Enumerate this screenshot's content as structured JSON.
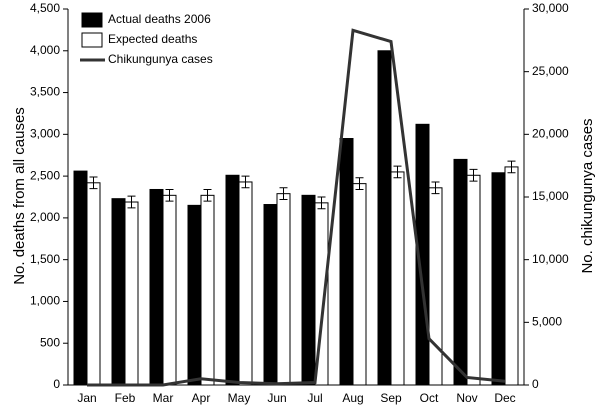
{
  "chart_data": {
    "type": "bar-line",
    "categories": [
      "Jan",
      "Feb",
      "Mar",
      "Apr",
      "May",
      "Jun",
      "Jul",
      "Aug",
      "Sep",
      "Oct",
      "Nov",
      "Dec"
    ],
    "y_label": "No. deaths from all causes",
    "y2_label": "No. chikungunya cases",
    "ylim": [
      0,
      4500
    ],
    "yticks": [
      0,
      500,
      {
        "value": 1000,
        "label": "1,000"
      },
      {
        "value": 1500,
        "label": "1,500"
      },
      {
        "value": 2000,
        "label": "2,000"
      },
      {
        "value": 2500,
        "label": "2,500"
      },
      {
        "value": 3000,
        "label": "3,000"
      },
      {
        "value": 3500,
        "label": "3,500"
      },
      {
        "value": 4000,
        "label": "4,000"
      },
      {
        "value": 4500,
        "label": "4,500"
      }
    ],
    "y2lim": [
      0,
      30000
    ],
    "y2ticks": [
      0,
      {
        "value": 5000,
        "label": "5,000"
      },
      {
        "value": 10000,
        "label": "10,000"
      },
      {
        "value": 15000,
        "label": "15,000"
      },
      {
        "value": 20000,
        "label": "20,000"
      },
      {
        "value": 25000,
        "label": "25,000"
      },
      {
        "value": 30000,
        "label": "30,000"
      }
    ],
    "series": [
      {
        "name": "Actual deaths 2006",
        "color": "#000000",
        "kind": "bar",
        "values": [
          2560,
          2230,
          2340,
          2150,
          2510,
          2160,
          2270,
          2950,
          4000,
          3120,
          2700,
          2540
        ]
      },
      {
        "name": "Expected deaths",
        "color": "#ffffff",
        "kind": "bar",
        "values": [
          2420,
          2190,
          2270,
          2270,
          2430,
          2290,
          2180,
          2410,
          2550,
          2360,
          2510,
          2610
        ],
        "errors": [
          70,
          70,
          70,
          70,
          70,
          70,
          70,
          70,
          70,
          70,
          70,
          70
        ]
      },
      {
        "name": "Chikungunya cases",
        "color": "#333333",
        "kind": "line",
        "axis": "y2",
        "values": [
          0,
          0,
          0,
          500,
          200,
          100,
          200,
          28300,
          27400,
          3700,
          600,
          300
        ]
      }
    ]
  }
}
